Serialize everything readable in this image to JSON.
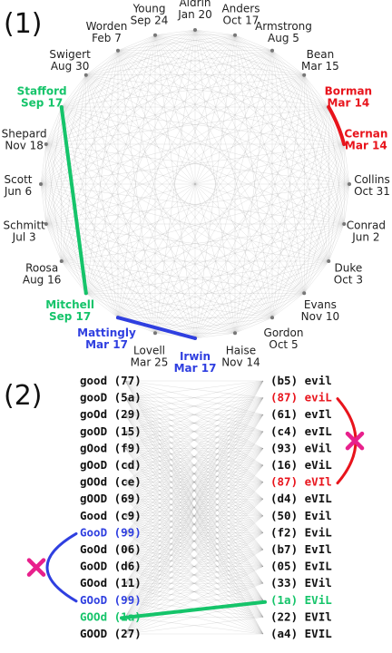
{
  "panel1": {
    "label": "(1)",
    "people": [
      {
        "name": "Aldrin",
        "date": "Jan 20",
        "color": "#222222",
        "bold": false
      },
      {
        "name": "Anders",
        "date": "Oct 17",
        "color": "#222222",
        "bold": false
      },
      {
        "name": "Armstrong",
        "date": "Aug 5",
        "color": "#222222",
        "bold": false
      },
      {
        "name": "Bean",
        "date": "Mar 15",
        "color": "#222222",
        "bold": false
      },
      {
        "name": "Borman",
        "date": "Mar 14",
        "color": "#e8141c",
        "bold": true
      },
      {
        "name": "Cernan",
        "date": "Mar 14",
        "color": "#e8141c",
        "bold": true
      },
      {
        "name": "Collins",
        "date": "Oct 31",
        "color": "#222222",
        "bold": false
      },
      {
        "name": "Conrad",
        "date": "Jun 2",
        "color": "#222222",
        "bold": false
      },
      {
        "name": "Duke",
        "date": "Oct 3",
        "color": "#222222",
        "bold": false
      },
      {
        "name": "Evans",
        "date": "Nov 10",
        "color": "#222222",
        "bold": false
      },
      {
        "name": "Gordon",
        "date": "Oct 5",
        "color": "#222222",
        "bold": false
      },
      {
        "name": "Haise",
        "date": "Nov 14",
        "color": "#222222",
        "bold": false
      },
      {
        "name": "Irwin",
        "date": "Mar 17",
        "color": "#2f3fe0",
        "bold": true
      },
      {
        "name": "Lovell",
        "date": "Mar 25",
        "color": "#222222",
        "bold": false
      },
      {
        "name": "Mattingly",
        "date": "Mar 17",
        "color": "#2f3fe0",
        "bold": true
      },
      {
        "name": "Mitchell",
        "date": "Sep 17",
        "color": "#15c46a",
        "bold": true
      },
      {
        "name": "Roosa",
        "date": "Aug 16",
        "color": "#222222",
        "bold": false
      },
      {
        "name": "Schmitt",
        "date": "Jul 3",
        "color": "#222222",
        "bold": false
      },
      {
        "name": "Scott",
        "date": "Jun 6",
        "color": "#222222",
        "bold": false
      },
      {
        "name": "Shepard",
        "date": "Nov 18",
        "color": "#222222",
        "bold": false
      },
      {
        "name": "Stafford",
        "date": "Sep 17",
        "color": "#15c46a",
        "bold": true
      },
      {
        "name": "Swigert",
        "date": "Aug 30",
        "color": "#222222",
        "bold": false
      },
      {
        "name": "Worden",
        "date": "Feb 7",
        "color": "#222222",
        "bold": false
      },
      {
        "name": "Young",
        "date": "Sep 24",
        "color": "#222222",
        "bold": false
      }
    ],
    "highlights": [
      {
        "from": "Borman",
        "to": "Cernan",
        "color": "#e8141c",
        "kind": "arc"
      },
      {
        "from": "Mattingly",
        "to": "Irwin",
        "color": "#2f3fe0",
        "kind": "chord"
      },
      {
        "from": "Stafford",
        "to": "Mitchell",
        "color": "#15c46a",
        "kind": "chord"
      }
    ]
  },
  "panel2": {
    "label": "(2)",
    "left": [
      {
        "text": "good",
        "hash": "(77)",
        "color": "#111111"
      },
      {
        "text": "gooD",
        "hash": "(5a)",
        "color": "#111111"
      },
      {
        "text": "goOd",
        "hash": "(29)",
        "color": "#111111"
      },
      {
        "text": "goOD",
        "hash": "(15)",
        "color": "#111111"
      },
      {
        "text": "gOod",
        "hash": "(f9)",
        "color": "#111111"
      },
      {
        "text": "gOoD",
        "hash": "(cd)",
        "color": "#111111"
      },
      {
        "text": "gOOd",
        "hash": "(ce)",
        "color": "#111111"
      },
      {
        "text": "gOOD",
        "hash": "(69)",
        "color": "#111111"
      },
      {
        "text": "Good",
        "hash": "(c9)",
        "color": "#111111"
      },
      {
        "text": "GooD",
        "hash": "(99)",
        "color": "#2f3fe0"
      },
      {
        "text": "GoOd",
        "hash": "(06)",
        "color": "#111111"
      },
      {
        "text": "GoOD",
        "hash": "(d6)",
        "color": "#111111"
      },
      {
        "text": "GOod",
        "hash": "(11)",
        "color": "#111111"
      },
      {
        "text": "GOoD",
        "hash": "(99)",
        "color": "#2f3fe0"
      },
      {
        "text": "GOOd",
        "hash": "(1a)",
        "color": "#15c46a"
      },
      {
        "text": "GOOD",
        "hash": "(27)",
        "color": "#111111"
      }
    ],
    "right": [
      {
        "hash": "(b5)",
        "text": "evil",
        "color": "#111111"
      },
      {
        "hash": "(87)",
        "text": "eviL",
        "color": "#e8141c"
      },
      {
        "hash": "(61)",
        "text": "evIl",
        "color": "#111111"
      },
      {
        "hash": "(c4)",
        "text": "evIL",
        "color": "#111111"
      },
      {
        "hash": "(93)",
        "text": "eVil",
        "color": "#111111"
      },
      {
        "hash": "(16)",
        "text": "eViL",
        "color": "#111111"
      },
      {
        "hash": "(87)",
        "text": "eVIl",
        "color": "#e8141c"
      },
      {
        "hash": "(d4)",
        "text": "eVIL",
        "color": "#111111"
      },
      {
        "hash": "(50)",
        "text": "Evil",
        "color": "#111111"
      },
      {
        "hash": "(f2)",
        "text": "EviL",
        "color": "#111111"
      },
      {
        "hash": "(b7)",
        "text": "EvIl",
        "color": "#111111"
      },
      {
        "hash": "(05)",
        "text": "EvIL",
        "color": "#111111"
      },
      {
        "hash": "(33)",
        "text": "EVil",
        "color": "#111111"
      },
      {
        "hash": "(1a)",
        "text": "EViL",
        "color": "#15c46a"
      },
      {
        "hash": "(22)",
        "text": "EVIl",
        "color": "#111111"
      },
      {
        "hash": "(a4)",
        "text": "EVIL",
        "color": "#111111"
      }
    ],
    "green_link": {
      "left_index": 14,
      "right_index": 13,
      "color": "#15c46a"
    },
    "red_bracket": {
      "first": 1,
      "last": 6,
      "color": "#e8141c"
    },
    "blue_bracket": {
      "first": 9,
      "last": 13,
      "color": "#2f3fe0"
    },
    "cross_color": "#e8208c"
  }
}
